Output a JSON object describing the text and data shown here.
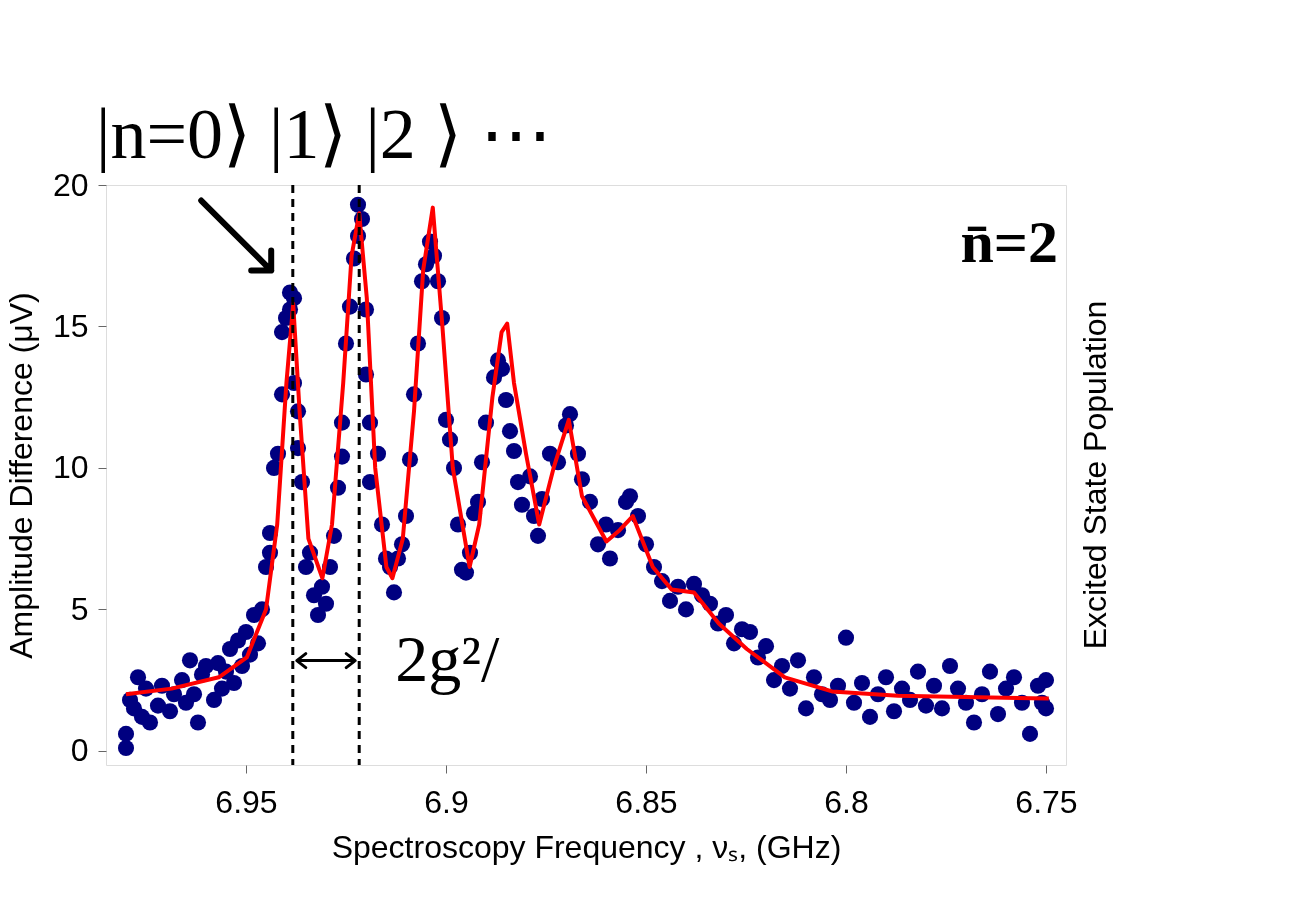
{
  "chart_data": {
    "type": "scatter",
    "xlabel": "Spectroscopy  Frequency , νₛ, (GHz)",
    "ylabel": "Amplitude  Difference (μV)",
    "y2label": "Excited  State  Population",
    "xlim": [
      6.985,
      6.745
    ],
    "ylim": [
      -0.5,
      20
    ],
    "xticks": [
      6.95,
      6.9,
      6.85,
      6.8,
      6.75
    ],
    "yticks": [
      0,
      5,
      10,
      15,
      20
    ],
    "grid": false,
    "series": [
      {
        "marker": "circle",
        "color": "#000080",
        "x": [
          6.98,
          6.98,
          6.979,
          6.978,
          6.977,
          6.976,
          6.975,
          6.974,
          6.972,
          6.971,
          6.969,
          6.968,
          6.966,
          6.965,
          6.964,
          6.963,
          6.962,
          6.961,
          6.96,
          6.958,
          6.957,
          6.956,
          6.955,
          6.954,
          6.953,
          6.952,
          6.951,
          6.95,
          6.949,
          6.948,
          6.947,
          6.946,
          6.945,
          6.944,
          6.944,
          6.943,
          6.942,
          6.941,
          6.941,
          6.94,
          6.939,
          6.939,
          6.938,
          6.938,
          6.937,
          6.937,
          6.936,
          6.935,
          6.934,
          6.933,
          6.932,
          6.931,
          6.93,
          6.929,
          6.928,
          6.927,
          6.926,
          6.926,
          6.925,
          6.924,
          6.923,
          6.922,
          6.922,
          6.921,
          6.92,
          6.92,
          6.919,
          6.919,
          6.917,
          6.916,
          6.915,
          6.914,
          6.913,
          6.912,
          6.911,
          6.91,
          6.909,
          6.908,
          6.907,
          6.906,
          6.905,
          6.904,
          6.903,
          6.902,
          6.901,
          6.9,
          6.899,
          6.898,
          6.897,
          6.896,
          6.895,
          6.894,
          6.893,
          6.892,
          6.891,
          6.89,
          6.888,
          6.887,
          6.886,
          6.885,
          6.884,
          6.883,
          6.882,
          6.881,
          6.879,
          6.878,
          6.877,
          6.876,
          6.874,
          6.872,
          6.87,
          6.869,
          6.867,
          6.866,
          6.864,
          6.862,
          6.86,
          6.859,
          6.857,
          6.855,
          6.854,
          6.852,
          6.85,
          6.848,
          6.846,
          6.844,
          6.842,
          6.84,
          6.838,
          6.836,
          6.834,
          6.832,
          6.83,
          6.828,
          6.826,
          6.824,
          6.822,
          6.82,
          6.818,
          6.816,
          6.814,
          6.812,
          6.81,
          6.808,
          6.806,
          6.804,
          6.802,
          6.8,
          6.798,
          6.796,
          6.794,
          6.792,
          6.79,
          6.788,
          6.786,
          6.784,
          6.782,
          6.78,
          6.778,
          6.776,
          6.774,
          6.772,
          6.77,
          6.768,
          6.766,
          6.764,
          6.762,
          6.76,
          6.758,
          6.756,
          6.754,
          6.752,
          6.751,
          6.75,
          6.75
        ],
        "values": [
          0.1,
          0.6,
          1.8,
          1.5,
          2.6,
          1.2,
          2.2,
          1.0,
          1.6,
          2.3,
          1.4,
          2.0,
          2.5,
          1.7,
          3.2,
          2.0,
          1.0,
          2.7,
          3.0,
          1.8,
          3.1,
          2.2,
          2.8,
          3.6,
          2.4,
          3.9,
          3.0,
          4.2,
          3.4,
          4.8,
          3.8,
          5.0,
          6.5,
          7.7,
          7.0,
          10.0,
          10.5,
          12.6,
          14.8,
          15.3,
          16.2,
          15.6,
          16.0,
          13.0,
          12.0,
          10.7,
          9.5,
          6.5,
          7.0,
          5.5,
          4.8,
          5.8,
          5.2,
          6.5,
          7.6,
          9.3,
          10.4,
          11.6,
          14.4,
          15.7,
          17.4,
          19.3,
          18.2,
          18.8,
          15.6,
          13.3,
          11.6,
          9.5,
          10.5,
          8.0,
          6.8,
          6.5,
          5.6,
          6.8,
          7.3,
          8.3,
          10.3,
          12.6,
          14.4,
          16.6,
          17.2,
          18.0,
          17.5,
          16.6,
          15.3,
          11.7,
          11.0,
          10.0,
          8.0,
          6.4,
          6.3,
          7.0,
          8.4,
          8.8,
          10.2,
          11.6,
          13.2,
          13.8,
          13.5,
          12.4,
          11.3,
          10.6,
          9.5,
          8.7,
          9.7,
          8.3,
          7.6,
          8.9,
          10.5,
          10.2,
          11.5,
          11.9,
          10.5,
          9.6,
          8.8,
          7.3,
          8.0,
          6.8,
          7.8,
          8.8,
          9.0,
          8.3,
          7.3,
          6.5,
          6.0,
          5.3,
          5.8,
          5.0,
          5.9,
          5.5,
          5.2,
          4.5,
          4.8,
          3.8,
          4.3,
          4.2,
          3.3,
          3.7,
          2.5,
          3.0,
          2.2,
          3.2,
          1.5,
          2.6,
          2.0,
          1.8,
          2.3,
          4.0,
          1.7,
          2.4,
          1.2,
          2.0,
          2.6,
          1.4,
          2.2,
          1.8,
          2.8,
          1.6,
          2.3,
          1.5,
          3.0,
          2.2,
          1.7,
          1.0,
          2.0,
          2.8,
          1.3,
          2.2,
          2.6,
          1.7,
          0.6,
          2.3,
          1.7,
          2.5,
          1.5
        ]
      },
      {
        "type": "line",
        "color": "#ff0000",
        "x": [
          6.98,
          6.9686,
          6.9568,
          6.9498,
          6.945,
          6.9422,
          6.9399,
          6.9382,
          6.9366,
          6.9344,
          6.9309,
          6.9285,
          6.9257,
          6.9236,
          6.9217,
          6.9198,
          6.9177,
          6.9149,
          6.9134,
          6.9108,
          6.908,
          6.9057,
          6.9033,
          6.9009,
          6.8983,
          6.8941,
          6.8917,
          6.8884,
          6.8861,
          6.8847,
          6.883,
          6.88,
          6.8767,
          6.8731,
          6.8693,
          6.866,
          6.8599,
          6.8566,
          6.8533,
          6.8483,
          6.8436,
          6.838,
          6.8318,
          6.8248,
          6.8153,
          6.8035,
          6.787,
          6.7493
        ],
        "values": [
          2.0,
          2.2,
          2.6,
          3.3,
          5.0,
          8,
          13,
          15.8,
          12,
          7.5,
          6.1,
          8,
          13,
          17.5,
          19.0,
          16,
          10,
          6.5,
          6.1,
          7.5,
          12,
          17,
          19.2,
          15,
          10,
          6.5,
          8,
          12.5,
          14.8,
          15.1,
          13,
          10.5,
          8.0,
          10,
          11.7,
          9,
          7.4,
          7.8,
          8.3,
          6.5,
          5.7,
          5.6,
          4.5,
          3.6,
          2.6,
          2.1,
          1.95,
          1.85
        ]
      }
    ],
    "ref_lines": [
      {
        "axis": "x",
        "value": 6.9383,
        "color": "#000000",
        "line_style": "dashed"
      },
      {
        "axis": "x",
        "value": 6.9217,
        "color": "#000000",
        "line_style": "dashed"
      }
    ],
    "annotations": [
      {
        "text": "|n=0⟩ |1⟩ |2 ⟩ ⋯",
        "x": 6.9382,
        "y": 16.2
      },
      "n̄=2",
      "2g²/"
    ]
  }
}
